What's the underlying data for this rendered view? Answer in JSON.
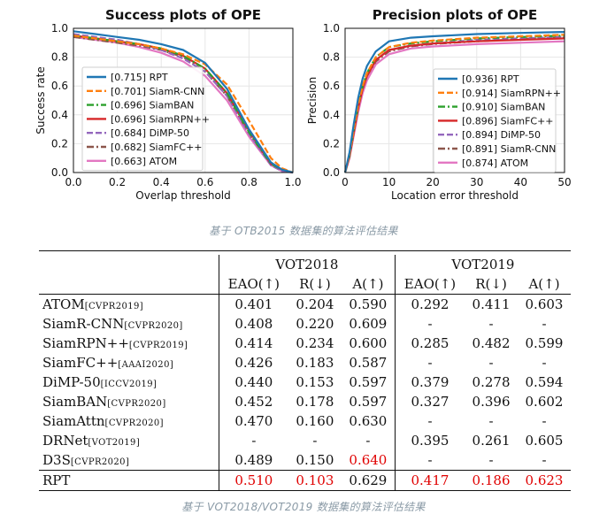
{
  "captions": {
    "charts": "基于 OTB2015 数据集的算法评估结果",
    "table": "基于 VOT2018/VOT2019 数据集的算法评估结果"
  },
  "chart_data": [
    {
      "type": "line",
      "title": "Success plots of OPE",
      "xlabel": "Overlap threshold",
      "ylabel": "Success rate",
      "xlim": [
        0,
        1
      ],
      "ylim": [
        0,
        1
      ],
      "xticks": [
        "0.0",
        "0.2",
        "0.4",
        "0.6",
        "0.8",
        "1.0"
      ],
      "yticks": [
        "0.0",
        "0.2",
        "0.4",
        "0.6",
        "0.8",
        "1.0"
      ],
      "grid": true,
      "legend_position": "bottom-left",
      "x": [
        0,
        0.1,
        0.2,
        0.3,
        0.4,
        0.5,
        0.6,
        0.7,
        0.8,
        0.9,
        0.95,
        1.0
      ],
      "series": [
        {
          "name": "[0.715] RPT",
          "color": "#1f77b4",
          "dash": "solid",
          "values": [
            0.98,
            0.96,
            0.94,
            0.92,
            0.89,
            0.85,
            0.76,
            0.58,
            0.3,
            0.07,
            0.02,
            0.0
          ]
        },
        {
          "name": "[0.701] SiamR-CNN",
          "color": "#ff7f0e",
          "dash": "dashed",
          "values": [
            0.95,
            0.93,
            0.91,
            0.89,
            0.86,
            0.82,
            0.75,
            0.61,
            0.36,
            0.1,
            0.03,
            0.0
          ]
        },
        {
          "name": "[0.696] SiamBAN",
          "color": "#2ca02c",
          "dash": "dashdot",
          "values": [
            0.95,
            0.93,
            0.91,
            0.89,
            0.86,
            0.81,
            0.72,
            0.55,
            0.28,
            0.06,
            0.02,
            0.0
          ]
        },
        {
          "name": "[0.696] SiamRPN++",
          "color": "#d62728",
          "dash": "solid",
          "values": [
            0.95,
            0.93,
            0.91,
            0.89,
            0.86,
            0.81,
            0.72,
            0.55,
            0.29,
            0.06,
            0.02,
            0.0
          ]
        },
        {
          "name": "[0.684] DiMP-50",
          "color": "#9467bd",
          "dash": "dashed",
          "values": [
            0.96,
            0.94,
            0.92,
            0.89,
            0.85,
            0.79,
            0.7,
            0.53,
            0.27,
            0.05,
            0.01,
            0.0
          ]
        },
        {
          "name": "[0.682] SiamFC++",
          "color": "#8c564b",
          "dash": "dashdot",
          "values": [
            0.94,
            0.92,
            0.9,
            0.88,
            0.85,
            0.8,
            0.7,
            0.53,
            0.27,
            0.06,
            0.02,
            0.0
          ]
        },
        {
          "name": "[0.663] ATOM",
          "color": "#e377c2",
          "dash": "solid",
          "values": [
            0.94,
            0.92,
            0.9,
            0.87,
            0.83,
            0.77,
            0.67,
            0.5,
            0.25,
            0.05,
            0.01,
            0.0
          ]
        }
      ]
    },
    {
      "type": "line",
      "title": "Precision plots of OPE",
      "xlabel": "Location error threshold",
      "ylabel": "Precision",
      "xlim": [
        0,
        50
      ],
      "ylim": [
        0,
        1
      ],
      "xticks": [
        "0",
        "10",
        "20",
        "30",
        "40",
        "50"
      ],
      "yticks": [
        "0.0",
        "0.2",
        "0.4",
        "0.6",
        "0.8",
        "1.0"
      ],
      "grid": true,
      "legend_position": "bottom-right",
      "x": [
        0,
        1,
        2,
        3,
        4,
        5,
        7,
        10,
        15,
        20,
        30,
        40,
        50
      ],
      "series": [
        {
          "name": "[0.936] RPT",
          "color": "#1f77b4",
          "dash": "solid",
          "values": [
            0.0,
            0.14,
            0.34,
            0.52,
            0.65,
            0.74,
            0.84,
            0.91,
            0.935,
            0.945,
            0.96,
            0.968,
            0.975
          ]
        },
        {
          "name": "[0.914] SiamRPN++",
          "color": "#ff7f0e",
          "dash": "dashed",
          "values": [
            0.0,
            0.12,
            0.3,
            0.47,
            0.6,
            0.69,
            0.8,
            0.87,
            0.9,
            0.915,
            0.935,
            0.945,
            0.955
          ]
        },
        {
          "name": "[0.910] SiamBAN",
          "color": "#2ca02c",
          "dash": "dashdot",
          "values": [
            0.0,
            0.12,
            0.3,
            0.47,
            0.6,
            0.69,
            0.8,
            0.87,
            0.895,
            0.91,
            0.93,
            0.94,
            0.95
          ]
        },
        {
          "name": "[0.896] SiamFC++",
          "color": "#d62728",
          "dash": "solid",
          "values": [
            0.0,
            0.11,
            0.28,
            0.45,
            0.58,
            0.67,
            0.78,
            0.85,
            0.88,
            0.895,
            0.91,
            0.92,
            0.93
          ]
        },
        {
          "name": "[0.894] DiMP-50",
          "color": "#9467bd",
          "dash": "dashed",
          "values": [
            0.0,
            0.11,
            0.28,
            0.45,
            0.58,
            0.67,
            0.78,
            0.85,
            0.88,
            0.894,
            0.92,
            0.93,
            0.94
          ]
        },
        {
          "name": "[0.891] SiamR-CNN",
          "color": "#8c564b",
          "dash": "dashdot",
          "values": [
            0.0,
            0.12,
            0.29,
            0.46,
            0.58,
            0.67,
            0.77,
            0.84,
            0.875,
            0.891,
            0.91,
            0.925,
            0.935
          ]
        },
        {
          "name": "[0.874] ATOM",
          "color": "#e377c2",
          "dash": "solid",
          "values": [
            0.0,
            0.1,
            0.26,
            0.42,
            0.55,
            0.64,
            0.75,
            0.82,
            0.86,
            0.874,
            0.89,
            0.9,
            0.91
          ]
        }
      ]
    },
    {
      "type": "table",
      "groups": [
        "VOT2018",
        "VOT2019"
      ],
      "columns": [
        "EAO(↑)",
        "R(↓)",
        "A(↑)",
        "EAO(↑)",
        "R(↓)",
        "A(↑)"
      ],
      "rows": [
        {
          "name": "ATOM",
          "venue": "[CVPR2019]",
          "cells": [
            "0.401",
            "0.204",
            "0.590",
            "0.292",
            "0.411",
            "0.603"
          ]
        },
        {
          "name": "SiamR-CNN",
          "venue": "[CVPR2020]",
          "cells": [
            "0.408",
            "0.220",
            "0.609",
            "-",
            "-",
            "-"
          ]
        },
        {
          "name": "SiamRPN++",
          "venue": "[CVPR2019]",
          "cells": [
            "0.414",
            "0.234",
            "0.600",
            "0.285",
            "0.482",
            "0.599"
          ]
        },
        {
          "name": "SiamFC++",
          "venue": "[AAAI2020]",
          "cells": [
            "0.426",
            "0.183",
            "0.587",
            "-",
            "-",
            "-"
          ]
        },
        {
          "name": "DiMP-50",
          "venue": "[ICCV2019]",
          "cells": [
            "0.440",
            "0.153",
            "0.597",
            "0.379",
            "0.278",
            "0.594"
          ]
        },
        {
          "name": "SiamBAN",
          "venue": "[CVPR2020]",
          "cells": [
            "0.452",
            "0.178",
            "0.597",
            "0.327",
            "0.396",
            "0.602"
          ]
        },
        {
          "name": "SiamAttn",
          "venue": "[CVPR2020]",
          "cells": [
            "0.470",
            "0.160",
            "0.630",
            "-",
            "-",
            "-"
          ]
        },
        {
          "name": "DRNet",
          "venue": "[VOT2019]",
          "cells": [
            "-",
            "-",
            "-",
            "0.395",
            "0.261",
            "0.605"
          ]
        },
        {
          "name": "D3S",
          "venue": "[CVPR2020]",
          "cells": [
            "0.489",
            "0.150",
            "0.640",
            "-",
            "-",
            "-"
          ],
          "red": [
            2
          ]
        },
        {
          "name": "RPT",
          "venue": "",
          "cells": [
            "0.510",
            "0.103",
            "0.629",
            "0.417",
            "0.186",
            "0.623"
          ],
          "red": [
            0,
            1,
            3,
            4,
            5
          ]
        }
      ]
    }
  ]
}
